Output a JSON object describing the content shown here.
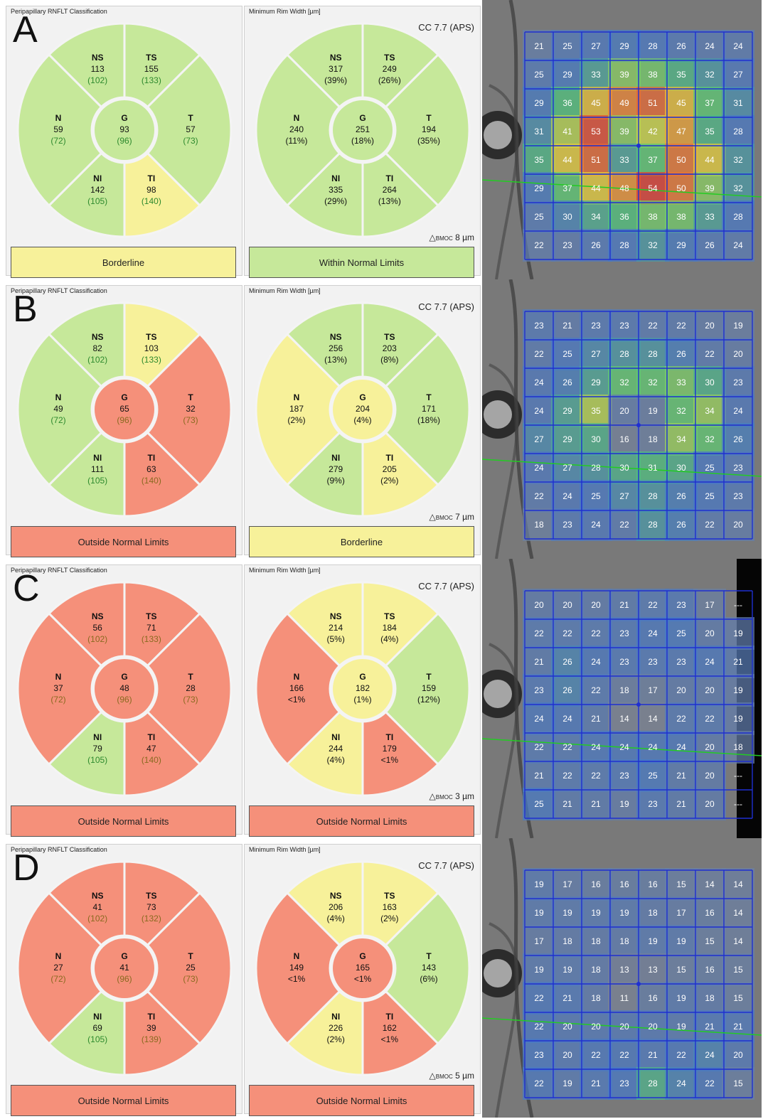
{
  "panels": [
    {
      "letter": "A",
      "rnflt": {
        "title": "Peripapillary RNFLT Classification",
        "status": "Borderline",
        "status_color": "#f7f19a",
        "center": {
          "label": "G",
          "value": "93",
          "ref": "(96)",
          "color": "#c6e89a",
          "refcolor": "#2e8a2e"
        },
        "sectors": [
          {
            "label": "NS",
            "value": "113",
            "ref": "(102)",
            "color": "#c6e89a",
            "refcolor": "#2e8a2e"
          },
          {
            "label": "TS",
            "value": "155",
            "ref": "(133)",
            "color": "#c6e89a",
            "refcolor": "#2e8a2e"
          },
          {
            "label": "T",
            "value": "57",
            "ref": "(73)",
            "color": "#c6e89a",
            "refcolor": "#2e8a2e"
          },
          {
            "label": "TI",
            "value": "98",
            "ref": "(140)",
            "color": "#f7f19a",
            "refcolor": "#2e8a2e"
          },
          {
            "label": "NI",
            "value": "142",
            "ref": "(105)",
            "color": "#c6e89a",
            "refcolor": "#2e8a2e"
          },
          {
            "label": "N",
            "value": "59",
            "ref": "(72)",
            "color": "#c6e89a",
            "refcolor": "#2e8a2e"
          }
        ]
      },
      "mrw": {
        "title": "Minimum Rim Width [µm]",
        "cc": "CC 7.7 (APS)",
        "bmoc": "8 µm",
        "status": "Within Normal Limits",
        "status_color": "#c6e89a",
        "center": {
          "label": "G",
          "value": "251",
          "ref": "(18%)",
          "color": "#c6e89a"
        },
        "sectors": [
          {
            "label": "NS",
            "value": "317",
            "ref": "(39%)",
            "color": "#c6e89a"
          },
          {
            "label": "TS",
            "value": "249",
            "ref": "(26%)",
            "color": "#c6e89a"
          },
          {
            "label": "T",
            "value": "194",
            "ref": "(35%)",
            "color": "#c6e89a"
          },
          {
            "label": "TI",
            "value": "264",
            "ref": "(13%)",
            "color": "#c6e89a"
          },
          {
            "label": "NI",
            "value": "335",
            "ref": "(29%)",
            "color": "#c6e89a"
          },
          {
            "label": "N",
            "value": "240",
            "ref": "(11%)",
            "color": "#c6e89a"
          }
        ]
      },
      "grid": [
        [
          21,
          25,
          27,
          29,
          28,
          26,
          24,
          24
        ],
        [
          25,
          29,
          33,
          39,
          38,
          35,
          32,
          27
        ],
        [
          29,
          36,
          45,
          49,
          51,
          45,
          37,
          31
        ],
        [
          31,
          41,
          53,
          39,
          42,
          47,
          35,
          28
        ],
        [
          35,
          44,
          51,
          33,
          37,
          50,
          44,
          32
        ],
        [
          29,
          37,
          44,
          48,
          54,
          50,
          39,
          32
        ],
        [
          25,
          30,
          34,
          36,
          38,
          38,
          33,
          28
        ],
        [
          22,
          23,
          26,
          28,
          32,
          29,
          26,
          24
        ]
      ]
    },
    {
      "letter": "B",
      "rnflt": {
        "title": "Peripapillary RNFLT Classification",
        "status": "Outside Normal Limits",
        "status_color": "#f5907a",
        "center": {
          "label": "G",
          "value": "65",
          "ref": "(96)",
          "color": "#f5907a",
          "refcolor": "#8a6a20"
        },
        "sectors": [
          {
            "label": "NS",
            "value": "82",
            "ref": "(102)",
            "color": "#c6e89a",
            "refcolor": "#2e8a2e"
          },
          {
            "label": "TS",
            "value": "103",
            "ref": "(133)",
            "color": "#f7f19a",
            "refcolor": "#2e8a2e"
          },
          {
            "label": "T",
            "value": "32",
            "ref": "(73)",
            "color": "#f5907a",
            "refcolor": "#8a6a20"
          },
          {
            "label": "TI",
            "value": "63",
            "ref": "(140)",
            "color": "#f5907a",
            "refcolor": "#8a6a20"
          },
          {
            "label": "NI",
            "value": "111",
            "ref": "(105)",
            "color": "#c6e89a",
            "refcolor": "#2e8a2e"
          },
          {
            "label": "N",
            "value": "49",
            "ref": "(72)",
            "color": "#c6e89a",
            "refcolor": "#2e8a2e"
          }
        ]
      },
      "mrw": {
        "title": "Minimum Rim Width [µm]",
        "cc": "CC 7.7 (APS)",
        "bmoc": "7 µm",
        "status": "Borderline",
        "status_color": "#f7f19a",
        "center": {
          "label": "G",
          "value": "204",
          "ref": "(4%)",
          "color": "#f7f19a"
        },
        "sectors": [
          {
            "label": "NS",
            "value": "256",
            "ref": "(13%)",
            "color": "#c6e89a"
          },
          {
            "label": "TS",
            "value": "203",
            "ref": "(8%)",
            "color": "#c6e89a"
          },
          {
            "label": "T",
            "value": "171",
            "ref": "(18%)",
            "color": "#c6e89a"
          },
          {
            "label": "TI",
            "value": "205",
            "ref": "(2%)",
            "color": "#f7f19a"
          },
          {
            "label": "NI",
            "value": "279",
            "ref": "(9%)",
            "color": "#c6e89a"
          },
          {
            "label": "N",
            "value": "187",
            "ref": "(2%)",
            "color": "#f7f19a"
          }
        ]
      },
      "grid": [
        [
          23,
          21,
          23,
          23,
          22,
          22,
          20,
          19
        ],
        [
          22,
          25,
          27,
          28,
          28,
          26,
          22,
          20
        ],
        [
          24,
          26,
          29,
          32,
          32,
          33,
          30,
          23
        ],
        [
          24,
          29,
          35,
          20,
          19,
          32,
          34,
          24
        ],
        [
          27,
          29,
          30,
          16,
          18,
          34,
          32,
          26
        ],
        [
          24,
          27,
          28,
          30,
          31,
          30,
          25,
          23
        ],
        [
          22,
          24,
          25,
          27,
          28,
          26,
          25,
          23
        ],
        [
          18,
          23,
          24,
          22,
          28,
          26,
          22,
          20
        ]
      ]
    },
    {
      "letter": "C",
      "rnflt": {
        "title": "Peripapillary RNFLT Classification",
        "status": "Outside Normal Limits",
        "status_color": "#f5907a",
        "center": {
          "label": "G",
          "value": "48",
          "ref": "(96)",
          "color": "#f5907a",
          "refcolor": "#8a6a20"
        },
        "sectors": [
          {
            "label": "NS",
            "value": "56",
            "ref": "(102)",
            "color": "#f5907a",
            "refcolor": "#8a6a20"
          },
          {
            "label": "TS",
            "value": "71",
            "ref": "(133)",
            "color": "#f5907a",
            "refcolor": "#8a6a20"
          },
          {
            "label": "T",
            "value": "28",
            "ref": "(73)",
            "color": "#f5907a",
            "refcolor": "#8a6a20"
          },
          {
            "label": "TI",
            "value": "47",
            "ref": "(140)",
            "color": "#f5907a",
            "refcolor": "#8a6a20"
          },
          {
            "label": "NI",
            "value": "79",
            "ref": "(105)",
            "color": "#c6e89a",
            "refcolor": "#2e8a2e"
          },
          {
            "label": "N",
            "value": "37",
            "ref": "(72)",
            "color": "#f5907a",
            "refcolor": "#8a6a20"
          }
        ]
      },
      "mrw": {
        "title": "Minimum Rim Width [µm]",
        "cc": "CC 7.7 (APS)",
        "bmoc": "3 µm",
        "status": "Outside Normal Limits",
        "status_color": "#f5907a",
        "center": {
          "label": "G",
          "value": "182",
          "ref": "(1%)",
          "color": "#f7f19a"
        },
        "sectors": [
          {
            "label": "NS",
            "value": "214",
            "ref": "(5%)",
            "color": "#f7f19a"
          },
          {
            "label": "TS",
            "value": "184",
            "ref": "(4%)",
            "color": "#f7f19a"
          },
          {
            "label": "T",
            "value": "159",
            "ref": "(12%)",
            "color": "#c6e89a"
          },
          {
            "label": "TI",
            "value": "179",
            "ref": "<1%",
            "color": "#f5907a"
          },
          {
            "label": "NI",
            "value": "244",
            "ref": "(4%)",
            "color": "#f7f19a"
          },
          {
            "label": "N",
            "value": "166",
            "ref": "<1%",
            "color": "#f5907a"
          }
        ]
      },
      "grid": [
        [
          20,
          20,
          20,
          21,
          22,
          23,
          17,
          "---"
        ],
        [
          22,
          22,
          22,
          23,
          24,
          25,
          20,
          19
        ],
        [
          21,
          26,
          24,
          23,
          23,
          23,
          24,
          21
        ],
        [
          23,
          26,
          22,
          18,
          17,
          20,
          20,
          19
        ],
        [
          24,
          24,
          21,
          14,
          14,
          22,
          22,
          19
        ],
        [
          22,
          22,
          24,
          24,
          24,
          24,
          20,
          18
        ],
        [
          21,
          22,
          22,
          23,
          25,
          21,
          20,
          "---"
        ],
        [
          25,
          21,
          21,
          19,
          23,
          21,
          20,
          "---"
        ]
      ]
    },
    {
      "letter": "D",
      "rnflt": {
        "title": "Peripapillary RNFLT Classification",
        "status": "Outside Normal Limits",
        "status_color": "#f5907a",
        "center": {
          "label": "G",
          "value": "41",
          "ref": "(96)",
          "color": "#f5907a",
          "refcolor": "#8a6a20"
        },
        "sectors": [
          {
            "label": "NS",
            "value": "41",
            "ref": "(102)",
            "color": "#f5907a",
            "refcolor": "#8a6a20"
          },
          {
            "label": "TS",
            "value": "73",
            "ref": "(132)",
            "color": "#f5907a",
            "refcolor": "#8a6a20"
          },
          {
            "label": "T",
            "value": "25",
            "ref": "(73)",
            "color": "#f5907a",
            "refcolor": "#8a6a20"
          },
          {
            "label": "TI",
            "value": "39",
            "ref": "(139)",
            "color": "#f5907a",
            "refcolor": "#8a6a20"
          },
          {
            "label": "NI",
            "value": "69",
            "ref": "(105)",
            "color": "#c6e89a",
            "refcolor": "#2e8a2e"
          },
          {
            "label": "N",
            "value": "27",
            "ref": "(72)",
            "color": "#f5907a",
            "refcolor": "#8a6a20"
          }
        ]
      },
      "mrw": {
        "title": "Minimum Rim Width [µm]",
        "cc": "CC 7.7 (APS)",
        "bmoc": "5 µm",
        "status": "Outside Normal Limits",
        "status_color": "#f5907a",
        "center": {
          "label": "G",
          "value": "165",
          "ref": "<1%",
          "color": "#f5907a"
        },
        "sectors": [
          {
            "label": "NS",
            "value": "206",
            "ref": "(4%)",
            "color": "#f7f19a"
          },
          {
            "label": "TS",
            "value": "163",
            "ref": "(2%)",
            "color": "#f7f19a"
          },
          {
            "label": "T",
            "value": "143",
            "ref": "(6%)",
            "color": "#c6e89a"
          },
          {
            "label": "TI",
            "value": "162",
            "ref": "<1%",
            "color": "#f5907a"
          },
          {
            "label": "NI",
            "value": "226",
            "ref": "(2%)",
            "color": "#f7f19a"
          },
          {
            "label": "N",
            "value": "149",
            "ref": "<1%",
            "color": "#f5907a"
          }
        ]
      },
      "grid": [
        [
          19,
          17,
          16,
          16,
          16,
          15,
          14,
          14
        ],
        [
          19,
          19,
          19,
          19,
          18,
          17,
          16,
          14
        ],
        [
          17,
          18,
          18,
          18,
          19,
          19,
          15,
          14
        ],
        [
          19,
          19,
          18,
          13,
          13,
          15,
          16,
          15
        ],
        [
          22,
          21,
          18,
          11,
          16,
          19,
          18,
          15
        ],
        [
          22,
          20,
          20,
          20,
          20,
          19,
          21,
          21
        ],
        [
          23,
          20,
          22,
          22,
          21,
          22,
          24,
          20
        ],
        [
          22,
          19,
          21,
          23,
          28,
          24,
          22,
          15
        ]
      ]
    }
  ]
}
